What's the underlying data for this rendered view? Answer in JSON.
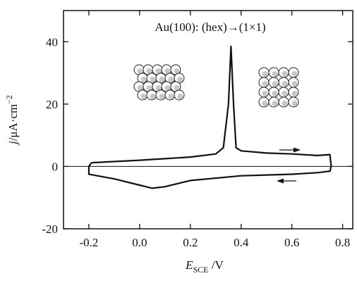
{
  "chart_data": {
    "type": "line",
    "annotation": "Au(100): (hex)→(1×1)",
    "x_label": {
      "main": "E",
      "sub": "SCE",
      "unit": " /V"
    },
    "y_label": {
      "main": "j",
      "unit": "/μA·cm",
      "sup": "−2"
    },
    "xlim": [
      -0.3,
      0.84
    ],
    "ylim": [
      -20,
      50
    ],
    "xticks": [
      -0.2,
      {
        "value": 0,
        "label": "0.0"
      },
      0.2,
      0.4,
      0.6,
      0.8
    ],
    "yticks": [
      -20,
      0,
      20,
      40
    ],
    "zero_line": true,
    "series": [
      {
        "color": "#111111",
        "x": [
          -0.19,
          0.0,
          0.1,
          0.2,
          0.3,
          0.33,
          0.35,
          0.36,
          0.37,
          0.38,
          0.4,
          0.5,
          0.6,
          0.7,
          0.75,
          0.755,
          0.75,
          0.7,
          0.6,
          0.4,
          0.2,
          0.1,
          0.05,
          0.0,
          -0.1,
          -0.2,
          -0.2,
          -0.19
        ],
        "values": [
          1.2,
          2,
          2.5,
          3,
          4,
          6,
          20,
          38.5,
          20,
          6,
          5,
          4.3,
          4,
          3.5,
          3.8,
          0,
          -1.5,
          -2,
          -2.5,
          -3,
          -4.5,
          -6.5,
          -7,
          -6,
          -4,
          -2.5,
          0,
          1.2
        ]
      }
    ]
  }
}
